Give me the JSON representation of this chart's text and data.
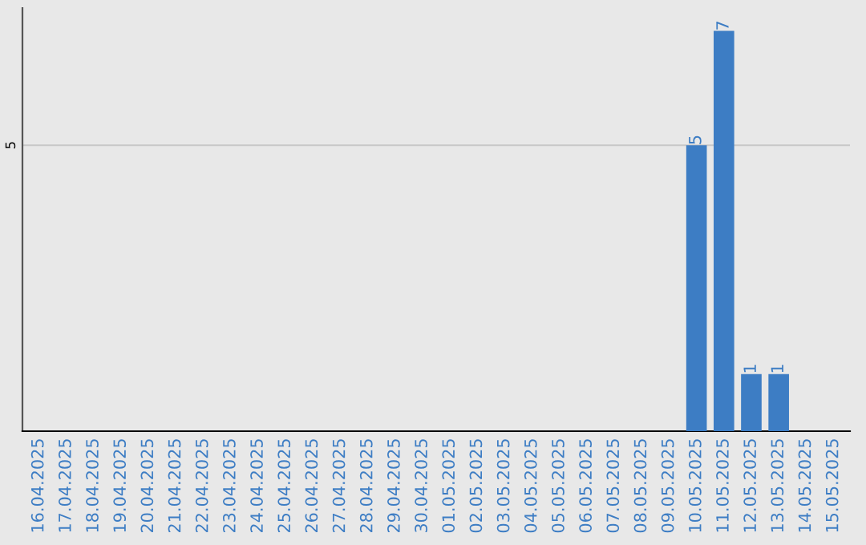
{
  "chart_data": {
    "type": "bar",
    "categories": [
      "16.04.2025",
      "17.04.2025",
      "18.04.2025",
      "19.04.2025",
      "20.04.2025",
      "21.04.2025",
      "22.04.2025",
      "23.04.2025",
      "24.04.2025",
      "25.04.2025",
      "26.04.2025",
      "27.04.2025",
      "28.04.2025",
      "29.04.2025",
      "30.04.2025",
      "01.05.2025",
      "02.05.2025",
      "03.05.2025",
      "04.05.2025",
      "05.05.2025",
      "06.05.2025",
      "07.05.2025",
      "08.05.2025",
      "09.05.2025",
      "10.05.2025",
      "11.05.2025",
      "12.05.2025",
      "13.05.2025",
      "14.05.2025",
      "15.05.2025"
    ],
    "values": [
      null,
      null,
      null,
      null,
      null,
      null,
      null,
      null,
      null,
      null,
      null,
      null,
      null,
      null,
      null,
      null,
      null,
      null,
      null,
      null,
      null,
      null,
      null,
      null,
      5,
      7,
      1,
      1,
      null,
      null
    ],
    "color": "#3d7dc4",
    "ylim": [
      0,
      7.4
    ],
    "yticks": [
      5
    ],
    "grid": "y",
    "data_labels": true
  }
}
